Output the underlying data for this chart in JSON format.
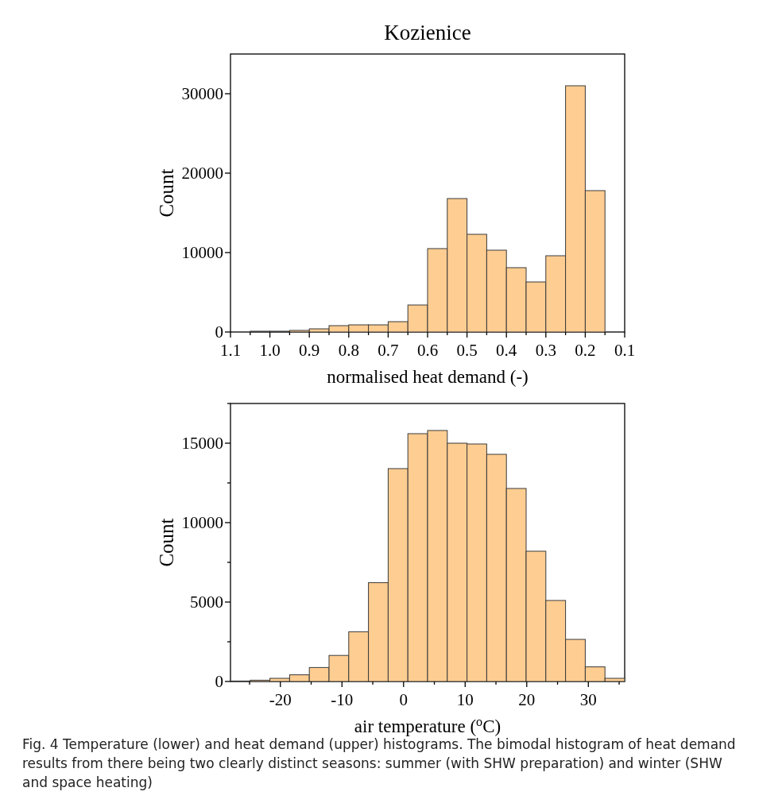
{
  "chart_data": [
    {
      "type": "histogram",
      "title": "Kozienice",
      "xlabel": "normalised heat demand (-)",
      "ylabel": "Count",
      "color": "#fecd92",
      "bins": [
        1.05,
        1.0,
        0.95,
        0.9,
        0.85,
        0.8,
        0.75,
        0.7,
        0.65,
        0.6,
        0.55,
        0.5,
        0.45,
        0.4,
        0.35,
        0.3,
        0.25,
        0.2,
        0.15
      ],
      "values": [
        100,
        100,
        200,
        400,
        800,
        900,
        900,
        1300,
        3400,
        10500,
        16800,
        12300,
        10300,
        8100,
        6300,
        9600,
        31000,
        17800
      ],
      "xlim": [
        1.1,
        0.1
      ],
      "xticks": [
        1.1,
        {
          "value": 1.05,
          "label": null
        },
        {
          "value": 1.0,
          "label": "1.0"
        },
        {
          "value": 0.95,
          "label": null
        },
        0.9,
        {
          "value": 0.85,
          "label": null
        },
        0.8,
        {
          "value": 0.75,
          "label": null
        },
        0.7,
        {
          "value": 0.65,
          "label": null
        },
        0.6,
        {
          "value": 0.55,
          "label": null
        },
        0.5,
        {
          "value": 0.45,
          "label": null
        },
        0.4,
        {
          "value": 0.35,
          "label": null
        },
        0.3,
        {
          "value": 0.25,
          "label": null
        },
        0.2,
        {
          "value": 0.15,
          "label": null
        },
        0.1
      ],
      "ylim": [
        0,
        35000
      ],
      "yticks": [
        0,
        10000,
        20000,
        30000
      ]
    },
    {
      "type": "histogram",
      "xlabel": "air temperature ($^{o}$C)",
      "ylabel": "Count",
      "color": "#fecd92",
      "bins": [
        -28.1,
        -24.9,
        -21.7,
        -18.5,
        -15.3,
        -12.1,
        -8.9,
        -5.7,
        -2.5,
        0.7,
        3.9,
        7.1,
        10.3,
        13.5,
        16.7,
        19.9,
        23.1,
        26.3,
        29.5,
        32.7,
        35.9
      ],
      "values": [
        30,
        80,
        200,
        420,
        880,
        1640,
        3130,
        6220,
        13400,
        15600,
        15800,
        15000,
        14950,
        14300,
        12150,
        8200,
        5100,
        2650,
        920,
        200
      ],
      "xlim": [
        -28.1,
        35.9
      ],
      "xticks": [
        {
          "value": -25,
          "label": null
        },
        -20,
        {
          "value": -15,
          "label": null
        },
        -10,
        {
          "value": -5,
          "label": null
        },
        0,
        {
          "value": 5,
          "label": null
        },
        10,
        {
          "value": 15,
          "label": null
        },
        20,
        {
          "value": 25,
          "label": null
        },
        30,
        {
          "value": 35,
          "label": null
        }
      ],
      "ylim": [
        0,
        17500
      ],
      "yticks": [
        0,
        {
          "value": 2500,
          "label": null
        },
        5000,
        {
          "value": 7500,
          "label": null
        },
        10000,
        {
          "value": 12500,
          "label": null
        },
        15000,
        {
          "value": 17500,
          "label": null
        }
      ],
      "annotations": [
        "Fig. 4 Temperature (lower) and heat demand (upper) histograms. The bimodal histogram of heat demand results from there being two clearly distinct seasons: summer (with SHW preparation) and winter (SHW and space heating)"
      ]
    }
  ]
}
